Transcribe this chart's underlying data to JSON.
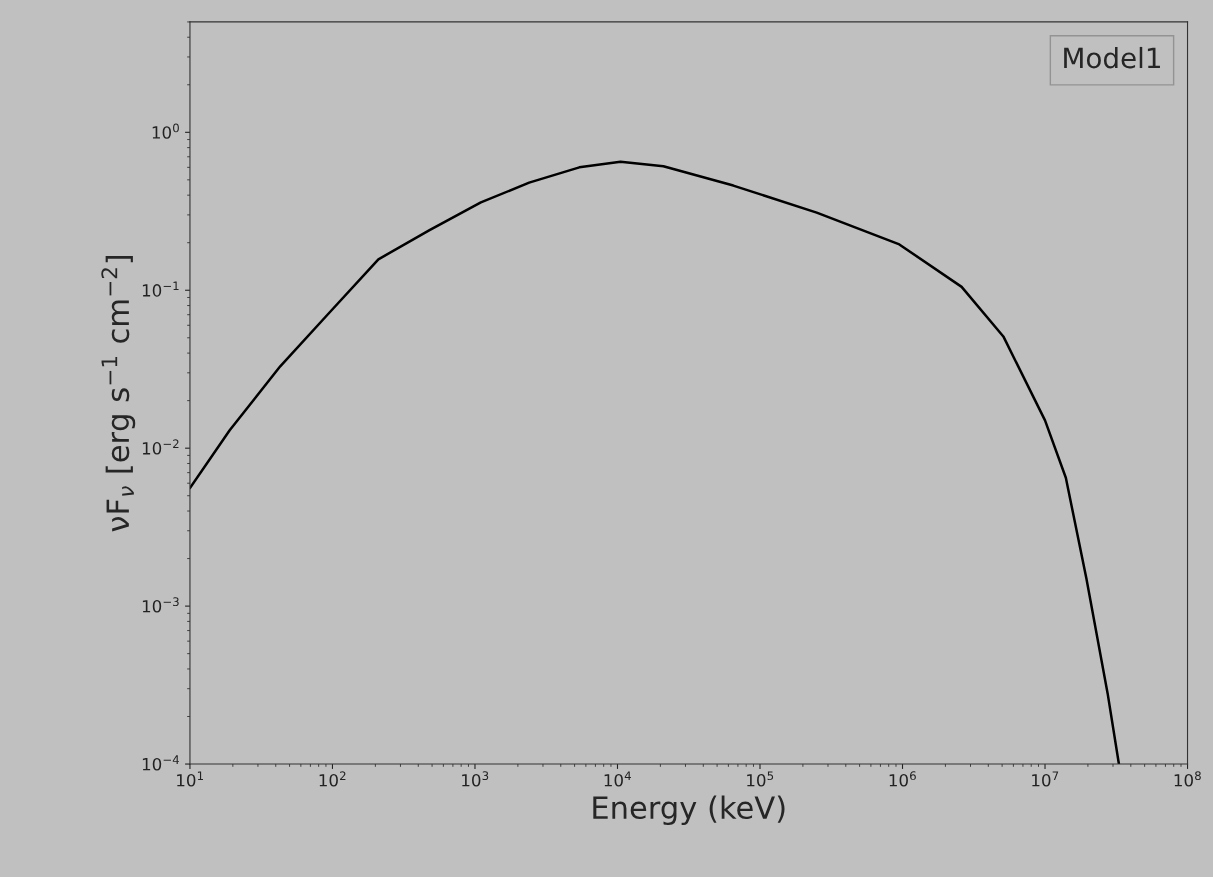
{
  "chart_data": {
    "type": "line",
    "xlabel": "Energy (keV)",
    "ylabel": "νF$_{ν}$ [erg s$^{−1}$ cm$^{−2}$]",
    "log": "xy",
    "grid": false,
    "legend": "top right",
    "marker": "none",
    "line_style": "solid",
    "xlim": [
      10,
      100000000
    ],
    "ylim": [
      0.0001,
      5
    ],
    "xticks": [
      {
        "value": 10,
        "label": "10$^{1}$"
      },
      {
        "value": 100,
        "label": "10$^{2}$"
      },
      {
        "value": 1000,
        "label": "10$^{3}$"
      },
      {
        "value": 10000,
        "label": "10$^{4}$"
      },
      {
        "value": 100000,
        "label": "10$^{5}$"
      },
      {
        "value": 1000000,
        "label": "10$^{6}$"
      },
      {
        "value": 10000000,
        "label": "10$^{7}$"
      },
      {
        "value": 100000000,
        "label": "10$^{8}$"
      }
    ],
    "yticks": [
      {
        "value": 0.0001,
        "label": "10$^{−4}$"
      },
      {
        "value": 0.001,
        "label": "10$^{−3}$"
      },
      {
        "value": 0.01,
        "label": "10$^{−2}$"
      },
      {
        "value": 0.1,
        "label": "10$^{−1}$"
      },
      {
        "value": 1,
        "label": "10$^{0}$"
      }
    ],
    "x": [
      10,
      19,
      43,
      95,
      210,
      480,
      1100,
      2400,
      5400,
      10500,
      21000,
      65000,
      250000,
      950000,
      2600000,
      5100000,
      10000000,
      14000000,
      19500000,
      27500000,
      33000000
    ],
    "series": [
      {
        "name": "Model1",
        "color": "#000000",
        "values": [
          0.0056,
          0.013,
          0.033,
          0.072,
          0.157,
          0.24,
          0.36,
          0.48,
          0.6,
          0.65,
          0.61,
          0.46,
          0.31,
          0.195,
          0.105,
          0.051,
          0.015,
          0.0065,
          0.0015,
          0.00028,
          0.0001
        ]
      }
    ]
  }
}
